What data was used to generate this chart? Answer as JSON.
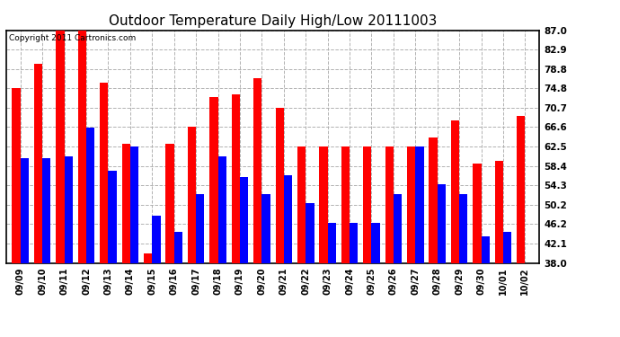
{
  "title": "Outdoor Temperature Daily High/Low 20111003",
  "copyright": "Copyright 2011 Cartronics.com",
  "dates": [
    "09/09",
    "09/10",
    "09/11",
    "09/12",
    "09/13",
    "09/14",
    "09/15",
    "09/16",
    "09/17",
    "09/18",
    "09/19",
    "09/20",
    "09/21",
    "09/22",
    "09/23",
    "09/24",
    "09/25",
    "09/26",
    "09/27",
    "09/28",
    "09/29",
    "09/30",
    "10/01",
    "10/02"
  ],
  "highs": [
    74.8,
    80.0,
    87.0,
    87.0,
    76.0,
    63.0,
    40.0,
    63.0,
    66.6,
    73.0,
    73.5,
    77.0,
    70.7,
    62.5,
    62.5,
    62.5,
    62.5,
    62.5,
    62.5,
    64.5,
    68.0,
    59.0,
    59.5,
    69.0
  ],
  "lows": [
    60.0,
    60.0,
    60.5,
    66.5,
    57.5,
    62.5,
    48.0,
    44.5,
    52.5,
    60.5,
    56.0,
    52.5,
    56.5,
    50.5,
    46.5,
    46.5,
    46.5,
    52.5,
    62.5,
    54.5,
    52.5,
    43.5,
    44.5,
    38.0
  ],
  "ylim_min": 38.0,
  "ylim_max": 87.0,
  "yticks": [
    38.0,
    42.1,
    46.2,
    50.2,
    54.3,
    58.4,
    62.5,
    66.6,
    70.7,
    74.8,
    78.8,
    82.9,
    87.0
  ],
  "high_color": "#ff0000",
  "low_color": "#0000ff",
  "bg_color": "#ffffff",
  "grid_color": "#aaaaaa",
  "title_fontsize": 11,
  "copyright_fontsize": 6.5,
  "bar_width": 0.38
}
